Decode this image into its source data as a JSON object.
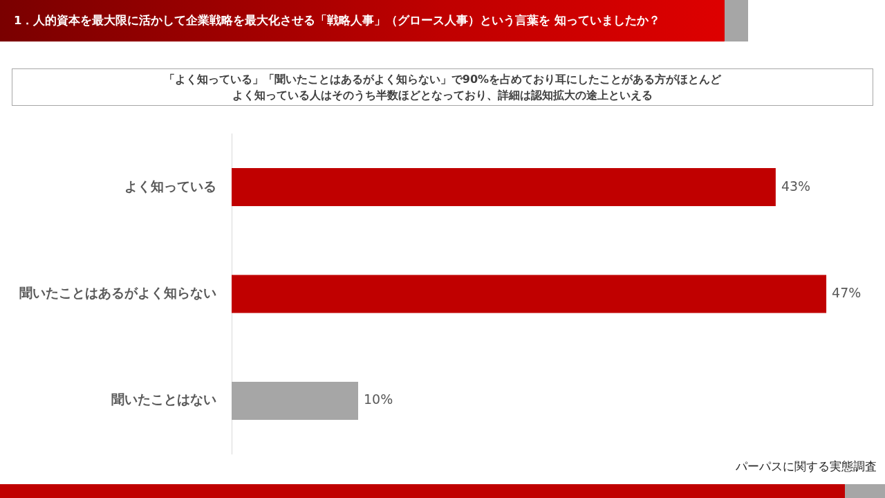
{
  "chart_data": {
    "type": "bar",
    "orientation": "horizontal",
    "title": "1．人的資本を最大限に活かして企業戦略を最大化させる「戦略人事」（グロース人事）という言葉を 知っていましたか？",
    "subtitle": "「よく知っている」「聞いたことはあるがよく知らない」で90%を占めており耳にしたことがある方がほとんどよく知っている人はそのうち半数ほどとなっており、詳細は認知拡大の途上といえる",
    "categories": [
      "よく知っている",
      "聞いたことはあるがよく知らない",
      "聞いたことはない"
    ],
    "values": [
      43,
      47,
      10
    ],
    "colors": [
      "#c00000",
      "#c00000",
      "#a6a6a6"
    ],
    "value_labels": [
      "43%",
      "47%",
      "10%"
    ],
    "annotations": [
      "パーパスに関する実態調査"
    ]
  }
}
